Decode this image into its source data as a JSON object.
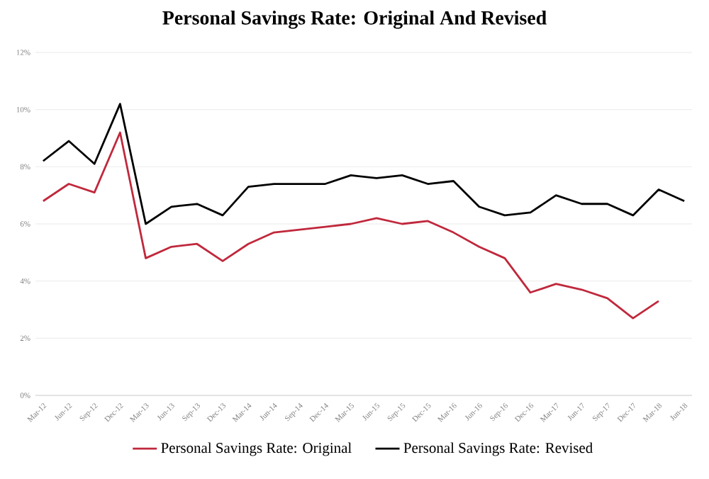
{
  "chart_data": {
    "type": "line",
    "title": "Personal Savings Rate: Original And Revised",
    "categories": [
      "Mar-12",
      "Jun-12",
      "Sep-12",
      "Dec-12",
      "Mar-13",
      "Jun-13",
      "Sep-13",
      "Dec-13",
      "Mar-14",
      "Jun-14",
      "Sep-14",
      "Dec-14",
      "Mar-15",
      "Jun-15",
      "Sep-15",
      "Dec-15",
      "Mar-16",
      "Jun-16",
      "Sep-16",
      "Dec-16",
      "Mar-17",
      "Jun-17",
      "Sep-17",
      "Dec-17",
      "Mar-18",
      "Jun-18"
    ],
    "series": [
      {
        "name": "Personal Savings Rate: Original",
        "color": "#c0283c",
        "values": [
          6.8,
          7.4,
          7.1,
          9.2,
          4.8,
          5.2,
          5.3,
          4.7,
          5.3,
          5.7,
          5.8,
          5.9,
          6.0,
          6.2,
          6.0,
          6.1,
          5.7,
          5.2,
          4.8,
          3.6,
          3.9,
          3.7,
          3.4,
          2.7,
          3.3,
          null
        ]
      },
      {
        "name": "Personal Savings Rate: Revised",
        "color": "#000000",
        "values": [
          8.2,
          8.9,
          8.1,
          10.2,
          6.0,
          6.6,
          6.7,
          6.3,
          7.3,
          7.4,
          7.4,
          7.4,
          7.7,
          7.6,
          7.7,
          7.4,
          7.5,
          6.6,
          6.3,
          6.4,
          7.0,
          6.7,
          6.7,
          6.3,
          7.2,
          6.8
        ]
      }
    ],
    "ylim": [
      0,
      12
    ],
    "yticks": [
      {
        "value": 0,
        "label": "0%"
      },
      {
        "value": 2,
        "label": "2%"
      },
      {
        "value": 4,
        "label": "4%"
      },
      {
        "value": 6,
        "label": "6%"
      },
      {
        "value": 8,
        "label": "8%"
      },
      {
        "value": 10,
        "label": "10%"
      },
      {
        "value": 12,
        "label": "12%"
      }
    ],
    "grid": "y",
    "legend": "bottom"
  }
}
